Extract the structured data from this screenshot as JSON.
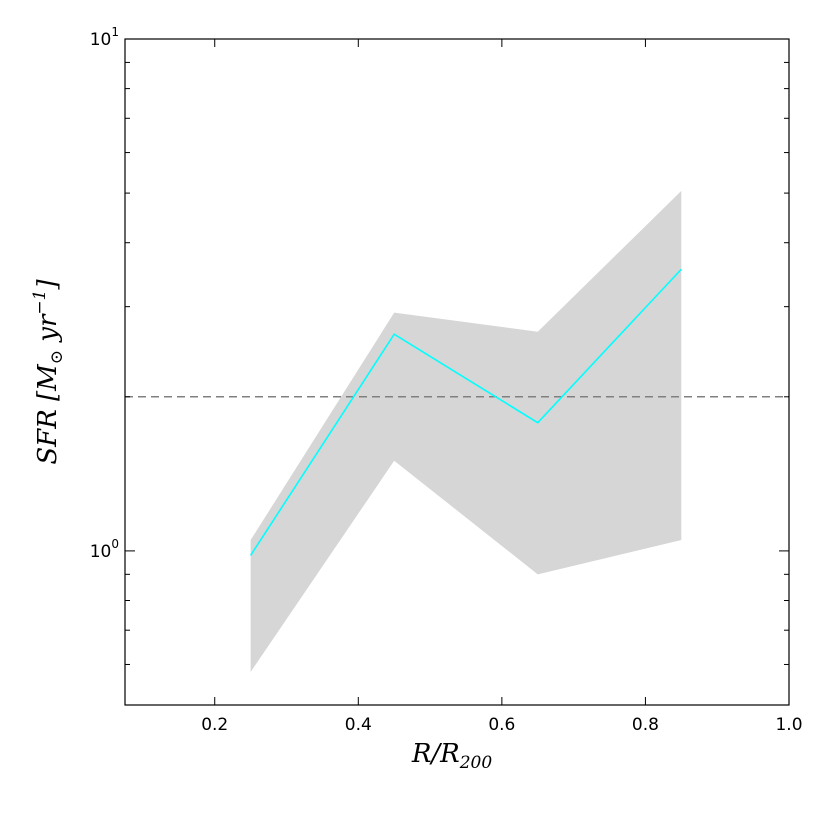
{
  "chart_data": {
    "type": "line",
    "xlabel": "R/R200",
    "ylabel": "SFR [M⊙ yr−1]",
    "xlim": [
      0.075,
      1.0
    ],
    "ylim": [
      0.5,
      10
    ],
    "yscale": "log",
    "grid": false,
    "x_ticks": [
      0.2,
      0.4,
      0.6,
      0.8,
      1.0
    ],
    "x_tick_labels": [
      "0.2",
      "0.4",
      "0.6",
      "0.8",
      "1.0"
    ],
    "y_ticks": [
      1,
      10
    ],
    "series": [
      {
        "x": [
          0.25,
          0.45,
          0.65,
          0.85
        ],
        "values": [
          0.98,
          2.65,
          1.78,
          3.55
        ],
        "color": "#00ffff"
      }
    ],
    "band": {
      "x": [
        0.25,
        0.45,
        0.65,
        0.85
      ],
      "lower": [
        0.58,
        1.5,
        0.9,
        1.05
      ],
      "upper": [
        1.05,
        2.92,
        2.68,
        5.05
      ],
      "color": "#d6d6d6"
    },
    "reference_line": {
      "y": 2.0,
      "style": "dashed",
      "color": "#808080"
    }
  }
}
